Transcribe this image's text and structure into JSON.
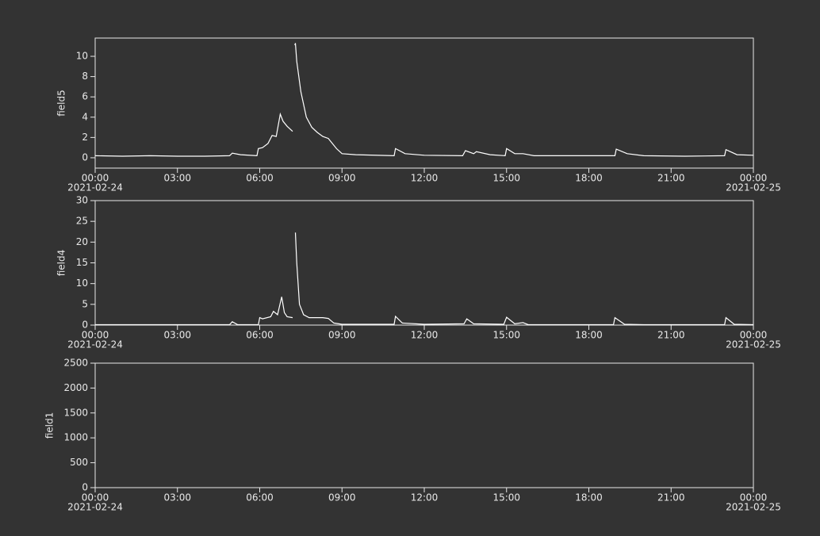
{
  "chart_data": [
    {
      "type": "line",
      "y_label": "field5",
      "color": "#ffffff",
      "xlim": [
        0,
        24
      ],
      "ylim": [
        -1.02,
        11.8
      ],
      "yticks": [
        0,
        2,
        4,
        6,
        8,
        10
      ],
      "xticks": [
        {
          "value": 0,
          "label": "00:00",
          "date": "2021-02-24"
        },
        {
          "value": 3,
          "label": "03:00"
        },
        {
          "value": 6,
          "label": "06:00"
        },
        {
          "value": 9,
          "label": "09:00"
        },
        {
          "value": 12,
          "label": "12:00"
        },
        {
          "value": 15,
          "label": "15:00"
        },
        {
          "value": 18,
          "label": "18:00"
        },
        {
          "value": 21,
          "label": "21:00"
        },
        {
          "value": 24,
          "label": "00:00",
          "date": "2021-02-25"
        }
      ],
      "x": [
        0,
        1,
        2,
        3,
        4,
        4.9,
        5.0,
        5.3,
        5.9,
        5.95,
        6.1,
        6.3,
        6.45,
        6.6,
        6.75,
        6.85,
        7.0,
        7.2,
        7.25,
        7.28,
        7.3,
        7.35,
        7.5,
        7.7,
        7.9,
        8.1,
        8.3,
        8.5,
        8.8,
        9.0,
        9.5,
        10.9,
        10.95,
        11.3,
        12,
        13.4,
        13.5,
        13.8,
        13.9,
        14.4,
        14.95,
        15.0,
        15.3,
        15.6,
        16,
        18,
        18.95,
        19.0,
        19.4,
        20,
        21.5,
        22.95,
        23.0,
        23.4,
        24
      ],
      "values": [
        0.2,
        0.15,
        0.2,
        0.15,
        0.15,
        0.2,
        0.45,
        0.3,
        0.2,
        0.9,
        1.0,
        1.4,
        2.2,
        2.1,
        4.3,
        3.6,
        3.1,
        2.6,
        null,
        11.1,
        11.3,
        9.5,
        6.5,
        4.0,
        3.0,
        2.5,
        2.1,
        1.9,
        0.9,
        0.4,
        0.3,
        0.2,
        0.9,
        0.4,
        0.25,
        0.2,
        0.7,
        0.4,
        0.6,
        0.3,
        0.2,
        0.9,
        0.4,
        0.4,
        0.2,
        0.2,
        0.2,
        0.85,
        0.4,
        0.2,
        0.15,
        0.2,
        0.8,
        0.3,
        0.25
      ]
    },
    {
      "type": "line",
      "y_label": "field4",
      "color": "#ffffff",
      "xlim": [
        0,
        24
      ],
      "ylim": [
        0,
        30
      ],
      "yticks": [
        0,
        5,
        10,
        15,
        20,
        25,
        30
      ],
      "xticks": [
        {
          "value": 0,
          "label": "00:00",
          "date": "2021-02-24"
        },
        {
          "value": 3,
          "label": "03:00"
        },
        {
          "value": 6,
          "label": "06:00"
        },
        {
          "value": 9,
          "label": "09:00"
        },
        {
          "value": 12,
          "label": "12:00"
        },
        {
          "value": 15,
          "label": "15:00"
        },
        {
          "value": 18,
          "label": "18:00"
        },
        {
          "value": 21,
          "label": "21:00"
        },
        {
          "value": 24,
          "label": "00:00",
          "date": "2021-02-25"
        }
      ],
      "x": [
        0,
        4.9,
        5.0,
        5.2,
        5.95,
        6.0,
        6.1,
        6.4,
        6.5,
        6.65,
        6.8,
        6.9,
        7.0,
        7.2,
        7.25,
        7.3,
        7.35,
        7.45,
        7.6,
        7.8,
        8.3,
        8.5,
        8.7,
        9,
        10.9,
        10.95,
        11.2,
        12,
        13.45,
        13.55,
        13.8,
        14.9,
        15.0,
        15.3,
        15.6,
        15.8,
        18.9,
        18.95,
        19.3,
        20,
        22.95,
        23.0,
        23.3,
        24
      ],
      "values": [
        0.1,
        0.1,
        0.8,
        0.1,
        0.1,
        1.8,
        1.5,
        2.0,
        3.3,
        2.5,
        6.8,
        3.0,
        2.0,
        1.8,
        null,
        22.3,
        15,
        5,
        2.5,
        1.8,
        1.8,
        1.6,
        0.5,
        0.2,
        0.2,
        2.1,
        0.5,
        0.2,
        0.3,
        1.5,
        0.3,
        0.2,
        1.9,
        0.3,
        0.6,
        0.1,
        0.1,
        1.8,
        0.2,
        0.1,
        0.1,
        1.8,
        0.2,
        0.1
      ]
    },
    {
      "type": "line",
      "y_label": "field1",
      "color": "#ffffff",
      "xlim": [
        0,
        24
      ],
      "ylim": [
        0,
        2500
      ],
      "yticks": [
        0,
        500,
        1000,
        1500,
        2000,
        2500
      ],
      "xticks": [
        {
          "value": 0,
          "label": "00:00",
          "date": "2021-02-24"
        },
        {
          "value": 3,
          "label": "03:00"
        },
        {
          "value": 6,
          "label": "06:00"
        },
        {
          "value": 9,
          "label": "09:00"
        },
        {
          "value": 12,
          "label": "12:00"
        },
        {
          "value": 15,
          "label": "15:00"
        },
        {
          "value": 18,
          "label": "18:00"
        },
        {
          "value": 21,
          "label": "21:00"
        },
        {
          "value": 24,
          "label": "00:00",
          "date": "2021-02-25"
        }
      ],
      "x": [],
      "values": []
    }
  ]
}
